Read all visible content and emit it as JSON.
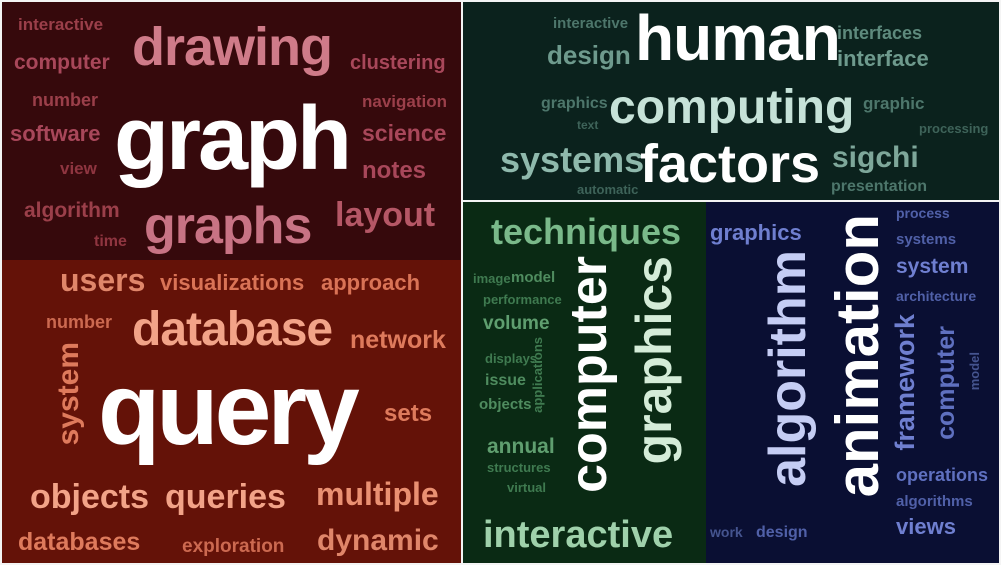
{
  "colors": {
    "red_dark_bg": "#36090c",
    "red_bright_bg": "#641208",
    "teal_bg": "#0b221d",
    "green_bg": "#0a2a14",
    "navy_bg": "#0a0f33"
  },
  "panels": {
    "red_dark": {
      "words": [
        "interactive",
        "computer",
        "number",
        "software",
        "view",
        "algorithm",
        "time",
        "drawing",
        "graph",
        "graphs",
        "clustering",
        "navigation",
        "science",
        "notes",
        "layout"
      ]
    },
    "red_bright": {
      "words": [
        "users",
        "visualizations",
        "approach",
        "number",
        "database",
        "network",
        "system",
        "query",
        "sets",
        "objects",
        "queries",
        "multiple",
        "databases",
        "exploration",
        "dynamic"
      ]
    },
    "teal": {
      "words": [
        "interactive",
        "design",
        "human",
        "interfaces",
        "interface",
        "graphics",
        "text",
        "computing",
        "graphic",
        "processing",
        "systems",
        "factors",
        "sigchi",
        "automatic",
        "presentation"
      ]
    },
    "green": {
      "words": [
        "techniques",
        "image",
        "model",
        "performance",
        "volume",
        "displays",
        "applications",
        "issue",
        "objects",
        "computer",
        "graphics",
        "annual",
        "structures",
        "virtual",
        "interactive"
      ]
    },
    "navy": {
      "words": [
        "graphics",
        "process",
        "systems",
        "system",
        "architecture",
        "algorithm",
        "animation",
        "framework",
        "computer",
        "model",
        "operations",
        "algorithms",
        "work",
        "design",
        "views"
      ]
    }
  }
}
